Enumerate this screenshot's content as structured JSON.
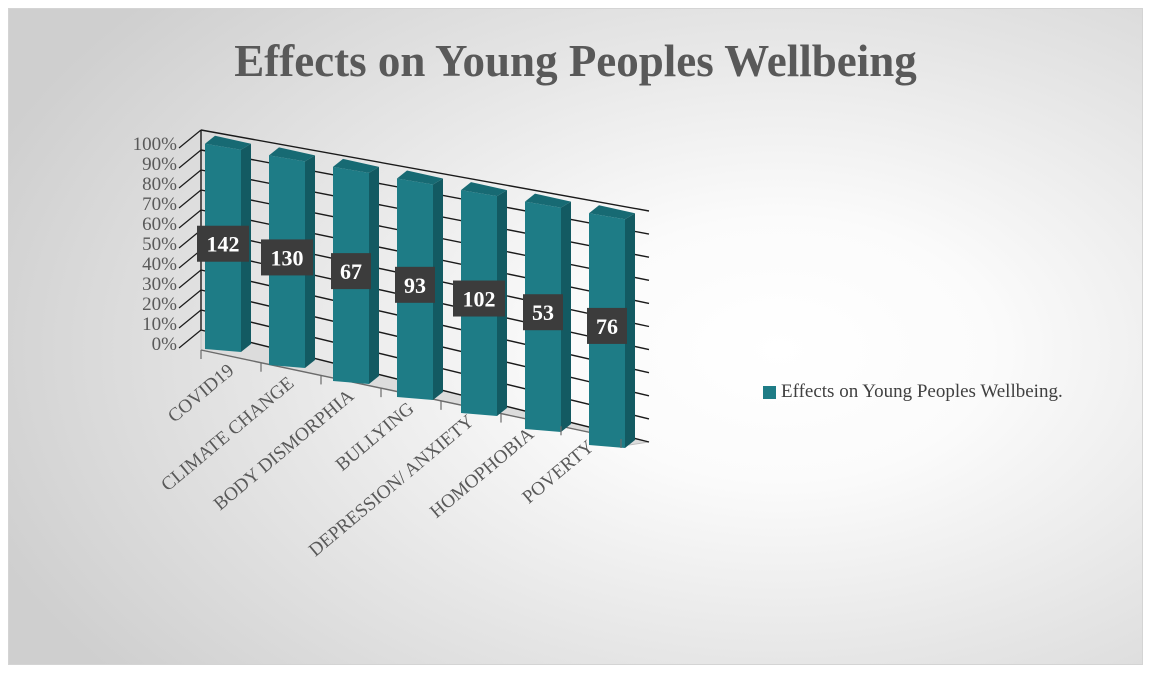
{
  "chart_data": {
    "type": "bar",
    "title": "Effects on Young Peoples Wellbeing",
    "categories": [
      "COVID19",
      "CLIMATE CHANGE",
      "BODY DISMORPHIA",
      "BULLYING",
      "DEPRESSION/ ANXIETY",
      "HOMOPHOBIA",
      "POVERTY"
    ],
    "series": [
      {
        "name": "Effects on Young Peoples Wellbeing.",
        "values": [
          142,
          130,
          67,
          93,
          102,
          53,
          76
        ],
        "color": "#1e7c86"
      }
    ],
    "data_labels": [
      "142",
      "130",
      "67",
      "93",
      "102",
      "53",
      "76"
    ],
    "y_tick_labels": [
      "0%",
      "10%",
      "20%",
      "30%",
      "40%",
      "50%",
      "60%",
      "70%",
      "80%",
      "90%",
      "100%"
    ],
    "ylim": [
      0,
      1
    ],
    "bar_fill_fraction": [
      1,
      1,
      1,
      1,
      1,
      1,
      1
    ],
    "stacked_percent": true,
    "three_d": true,
    "grid": true,
    "legend_position": "right"
  }
}
